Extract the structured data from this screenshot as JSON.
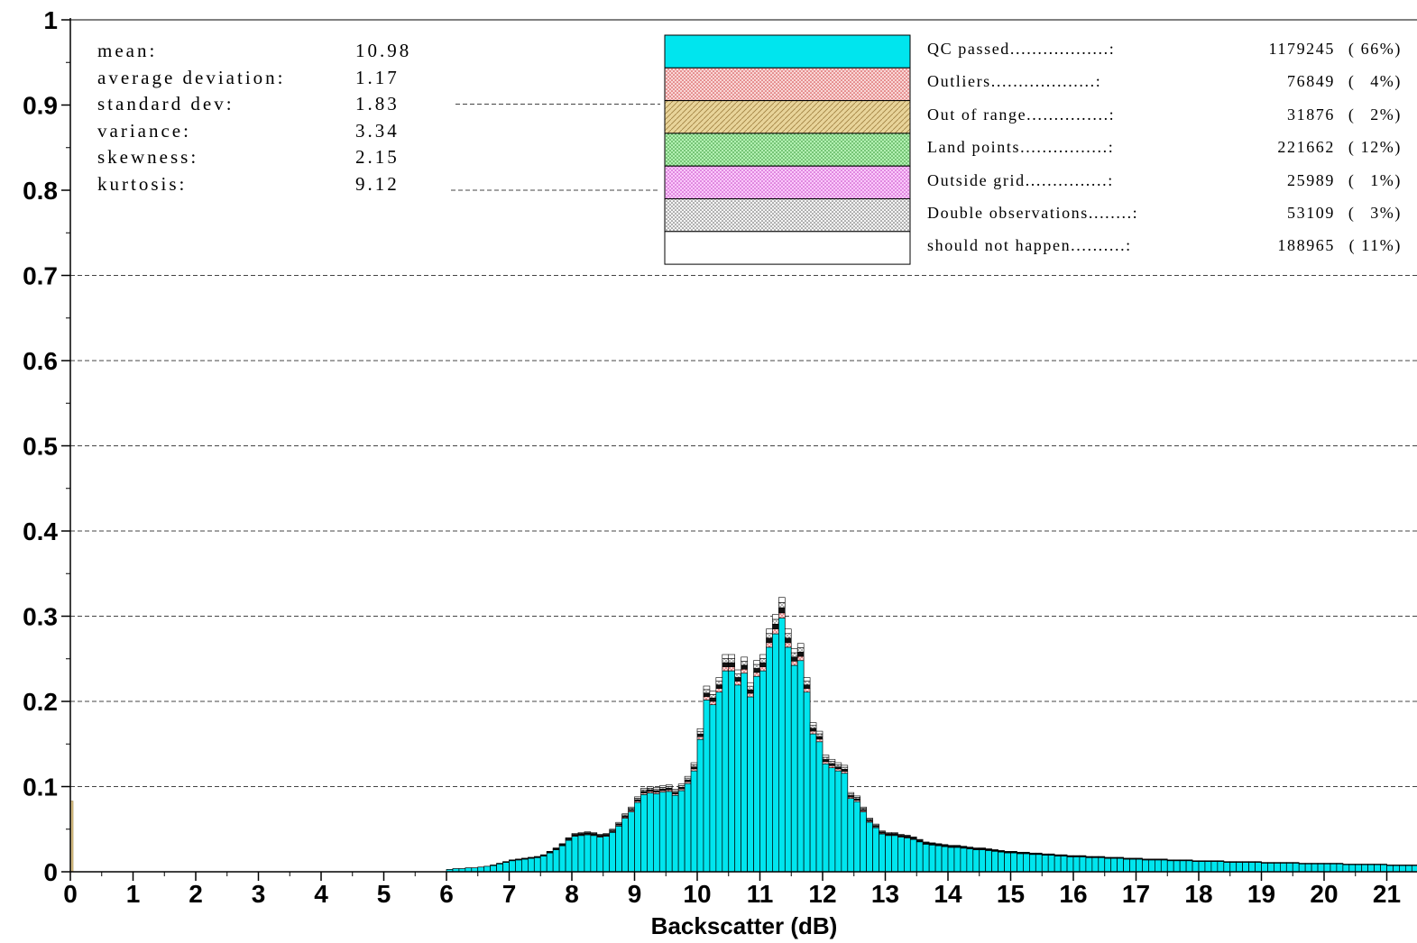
{
  "chart_data": {
    "type": "bar",
    "stacked": true,
    "xlabel": "Backscatter (dB)",
    "ylabel": "",
    "xlim": [
      0,
      21.4
    ],
    "ylim": [
      0,
      1
    ],
    "x_ticks": [
      "0",
      "1",
      "2",
      "3",
      "4",
      "5",
      "6",
      "7",
      "8",
      "9",
      "10",
      "11",
      "12",
      "13",
      "14",
      "15",
      "16",
      "17",
      "18",
      "19",
      "20",
      "21"
    ],
    "y_ticks": [
      "0",
      "0.1",
      "0.2",
      "0.3",
      "0.4",
      "0.5",
      "0.6",
      "0.7",
      "0.8",
      "0.9",
      "1"
    ],
    "grid": "horizontal dashed at 0.1 to 0.7",
    "bin_width": 0.1,
    "series": [
      {
        "name": "QC passed",
        "color": "#00e5ee",
        "count": "1179245",
        "percent": "66%"
      },
      {
        "name": "Outliers",
        "color": "#f4b4b4",
        "count": "76849",
        "percent": "4%"
      },
      {
        "name": "Out of range",
        "color": "#dcc48c",
        "count": "31876",
        "percent": "2%"
      },
      {
        "name": "Land points",
        "color": "#9ee89e",
        "count": "221662",
        "percent": "12%"
      },
      {
        "name": "Outside grid",
        "color": "#f4a8f4",
        "count": "25989",
        "percent": "1%"
      },
      {
        "name": "Double observations",
        "color": "#c8c8c8",
        "count": "53109",
        "percent": "3%"
      },
      {
        "name": "should not happen",
        "color": "#ffffff",
        "count": "188965",
        "percent": "11%"
      }
    ],
    "stats": [
      {
        "label": "mean:",
        "value": "10.98"
      },
      {
        "label": "average deviation:",
        "value": "1.17"
      },
      {
        "label": "standard dev:",
        "value": "1.83"
      },
      {
        "label": "variance:",
        "value": "3.34"
      },
      {
        "label": "skewness:",
        "value": "2.15"
      },
      {
        "label": "kurtosis:",
        "value": "9.12"
      }
    ],
    "spike_at_zero": {
      "x": 0.0,
      "value": 0.083,
      "color": "#dcc48c"
    },
    "bins_x_start": 6.0,
    "bins_total": [
      0.003,
      0.004,
      0.004,
      0.005,
      0.005,
      0.006,
      0.007,
      0.008,
      0.01,
      0.012,
      0.014,
      0.015,
      0.016,
      0.017,
      0.018,
      0.02,
      0.024,
      0.028,
      0.033,
      0.04,
      0.045,
      0.046,
      0.047,
      0.046,
      0.044,
      0.045,
      0.05,
      0.058,
      0.068,
      0.076,
      0.088,
      0.098,
      0.1,
      0.099,
      0.101,
      0.102,
      0.097,
      0.103,
      0.112,
      0.128,
      0.168,
      0.218,
      0.212,
      0.228,
      0.255,
      0.255,
      0.237,
      0.252,
      0.222,
      0.248,
      0.255,
      0.285,
      0.302,
      0.322,
      0.285,
      0.262,
      0.268,
      0.228,
      0.175,
      0.165,
      0.137,
      0.132,
      0.128,
      0.125,
      0.093,
      0.089,
      0.076,
      0.063,
      0.056,
      0.048,
      0.046,
      0.046,
      0.044,
      0.043,
      0.041,
      0.038,
      0.035,
      0.034,
      0.033,
      0.032,
      0.031,
      0.031,
      0.03,
      0.029,
      0.028,
      0.028,
      0.027,
      0.026,
      0.025,
      0.024,
      0.024,
      0.023,
      0.023,
      0.022,
      0.022,
      0.021,
      0.021,
      0.02,
      0.02,
      0.019,
      0.019,
      0.019,
      0.018,
      0.018,
      0.018,
      0.017,
      0.017,
      0.017,
      0.016,
      0.016,
      0.016,
      0.015,
      0.015,
      0.015,
      0.015,
      0.014,
      0.014,
      0.014,
      0.014,
      0.013,
      0.013,
      0.013,
      0.013,
      0.013,
      0.012,
      0.012,
      0.012,
      0.012,
      0.012,
      0.012,
      0.011,
      0.011,
      0.011,
      0.011,
      0.011,
      0.011,
      0.01,
      0.01,
      0.01,
      0.01,
      0.01,
      0.01,
      0.01,
      0.009,
      0.009,
      0.009,
      0.009,
      0.009,
      0.009,
      0.009,
      0.008,
      0.008,
      0.008,
      0.008,
      0.008
    ]
  }
}
